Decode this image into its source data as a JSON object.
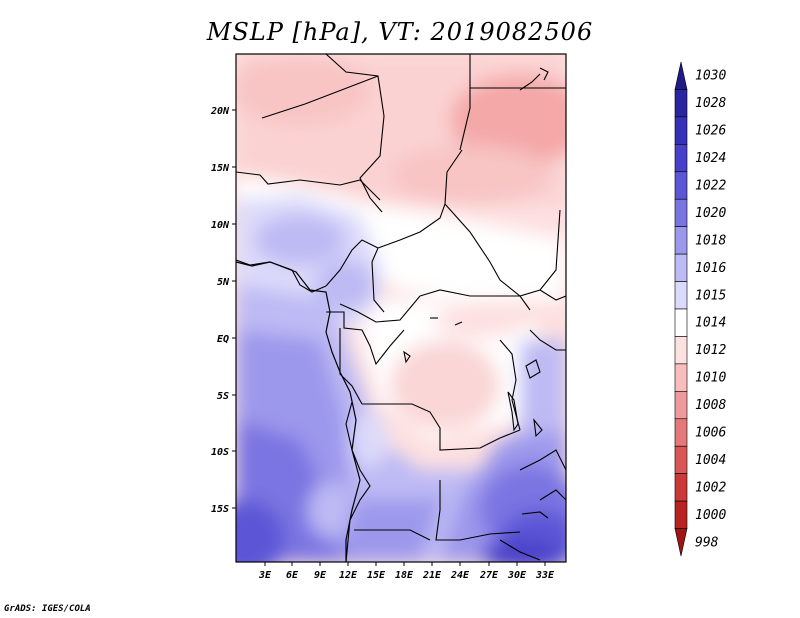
{
  "title": "MSLP [hPa], VT: 2019082506",
  "footer": "GrADS: IGES/COLA",
  "map": {
    "lat_labels": [
      "20N",
      "15N",
      "10N",
      "5N",
      "EQ",
      "5S",
      "10S",
      "15S"
    ],
    "lon_labels": [
      "3E",
      "6E",
      "9E",
      "12E",
      "15E",
      "18E",
      "21E",
      "24E",
      "27E",
      "30E",
      "33E"
    ]
  },
  "colorbar": {
    "levels": [
      {
        "label": "1030",
        "color": "#1e1a88"
      },
      {
        "label": "1028",
        "color": "#2a24a0"
      },
      {
        "label": "1026",
        "color": "#3630b8"
      },
      {
        "label": "1024",
        "color": "#4840c8"
      },
      {
        "label": "1022",
        "color": "#5c56d6"
      },
      {
        "label": "1020",
        "color": "#7a74e2"
      },
      {
        "label": "1018",
        "color": "#9c98ec"
      },
      {
        "label": "1016",
        "color": "#bdbaf4"
      },
      {
        "label": "1015",
        "color": "#dcdafa"
      },
      {
        "label": "1014",
        "color": "#ffffff"
      },
      {
        "label": "1012",
        "color": "#fde0e0"
      },
      {
        "label": "1010",
        "color": "#f8bdbd"
      },
      {
        "label": "1008",
        "color": "#ef9a9a"
      },
      {
        "label": "1006",
        "color": "#e57878"
      },
      {
        "label": "1004",
        "color": "#da5656"
      },
      {
        "label": "1002",
        "color": "#cc3838"
      },
      {
        "label": "1000",
        "color": "#b82222"
      },
      {
        "label": "998",
        "color": "#a01414"
      }
    ]
  }
}
